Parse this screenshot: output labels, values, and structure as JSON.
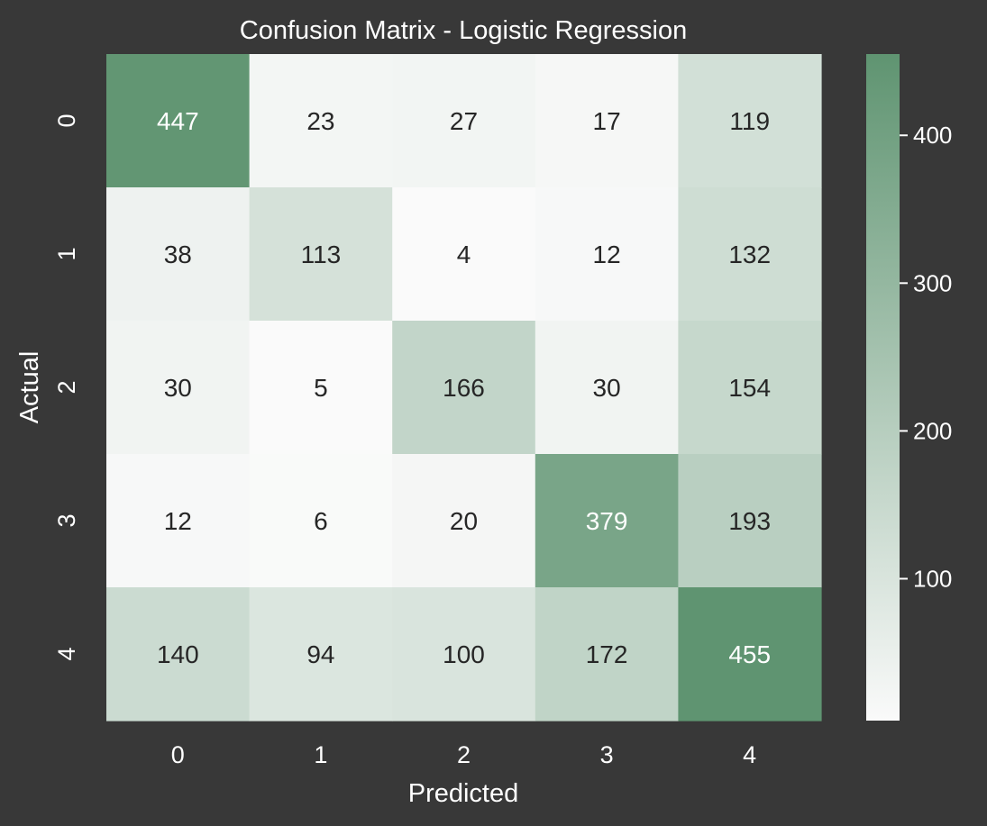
{
  "chart_data": {
    "type": "heatmap",
    "title": "Confusion Matrix - Logistic Regression",
    "xlabel": "Predicted",
    "ylabel": "Actual",
    "x_categories": [
      "0",
      "1",
      "2",
      "3",
      "4"
    ],
    "y_categories": [
      "0",
      "1",
      "2",
      "3",
      "4"
    ],
    "values": [
      [
        447,
        23,
        27,
        17,
        119
      ],
      [
        38,
        113,
        4,
        12,
        132
      ],
      [
        30,
        5,
        166,
        30,
        154
      ],
      [
        12,
        6,
        20,
        379,
        193
      ],
      [
        140,
        94,
        100,
        172,
        455
      ]
    ],
    "colorbar": {
      "min": 4,
      "max": 455,
      "ticks": [
        100,
        200,
        300,
        400
      ],
      "tick_labels": [
        "100",
        "200",
        "300",
        "400"
      ],
      "color_low": "#fafafa",
      "color_high": "#5f9471"
    },
    "annotation_dark_color": "#262626",
    "annotation_light_color": "#ffffff",
    "background_color": "#383838",
    "text_color": "#ffffff"
  }
}
